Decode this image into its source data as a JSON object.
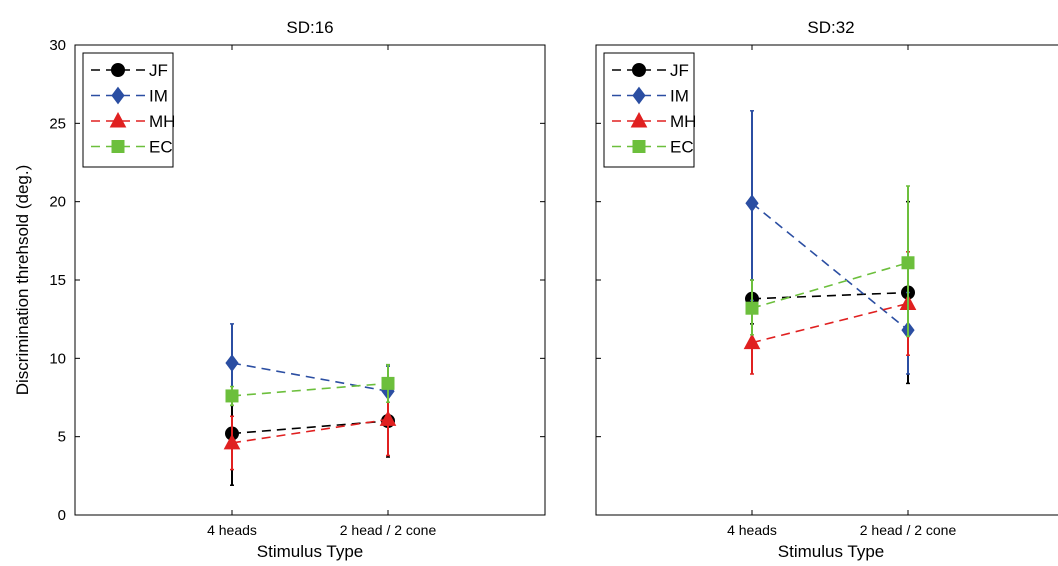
{
  "chart_data": [
    {
      "type": "line",
      "title": "SD:16",
      "xlabel": "Stimulus Type",
      "ylabel": "Discrimination threhsold (deg.)",
      "categories": [
        "4 heads",
        "2 head / 2 cone"
      ],
      "ylim": [
        0,
        30
      ],
      "yticks": [
        0,
        5,
        10,
        15,
        20,
        25,
        30
      ],
      "show_ytick_labels": true,
      "legend": "top-left",
      "series": [
        {
          "name": "JF",
          "color": "#000000",
          "marker": "circle",
          "values": [
            5.2,
            6.0
          ],
          "err_low": [
            1.9,
            3.7
          ],
          "err_high": [
            7.0,
            8.6
          ]
        },
        {
          "name": "IM",
          "color": "#2b4ea2",
          "marker": "diamond",
          "values": [
            9.7,
            7.9
          ],
          "err_low": [
            7.0,
            6.3
          ],
          "err_high": [
            12.2,
            9.5
          ]
        },
        {
          "name": "MH",
          "color": "#e02020",
          "marker": "triangle",
          "values": [
            4.6,
            6.1
          ],
          "err_low": [
            2.9,
            3.8
          ],
          "err_high": [
            6.3,
            8.3
          ]
        },
        {
          "name": "EC",
          "color": "#6cbf3c",
          "marker": "square",
          "values": [
            7.6,
            8.4
          ],
          "err_low": [
            7.0,
            7.2
          ],
          "err_high": [
            8.2,
            9.6
          ]
        }
      ]
    },
    {
      "type": "line",
      "title": "SD:32",
      "xlabel": "Stimulus Type",
      "ylabel": "",
      "categories": [
        "4 heads",
        "2 head / 2 cone"
      ],
      "ylim": [
        0,
        30
      ],
      "yticks": [
        0,
        5,
        10,
        15,
        20,
        25,
        30
      ],
      "show_ytick_labels": false,
      "legend": "top-left",
      "series": [
        {
          "name": "JF",
          "color": "#000000",
          "marker": "circle",
          "values": [
            13.8,
            14.2
          ],
          "err_low": [
            12.2,
            8.4
          ],
          "err_high": [
            15.0,
            20.0
          ]
        },
        {
          "name": "IM",
          "color": "#2b4ea2",
          "marker": "diamond",
          "values": [
            19.9,
            11.8
          ],
          "err_low": [
            13.7,
            9.0
          ],
          "err_high": [
            25.8,
            14.2
          ]
        },
        {
          "name": "MH",
          "color": "#e02020",
          "marker": "triangle",
          "values": [
            11.0,
            13.5
          ],
          "err_low": [
            9.0,
            10.2
          ],
          "err_high": [
            13.2,
            16.8
          ]
        },
        {
          "name": "EC",
          "color": "#6cbf3c",
          "marker": "square",
          "values": [
            13.2,
            16.1
          ],
          "err_low": [
            11.5,
            11.4
          ],
          "err_high": [
            15.0,
            21.0
          ]
        }
      ]
    }
  ]
}
